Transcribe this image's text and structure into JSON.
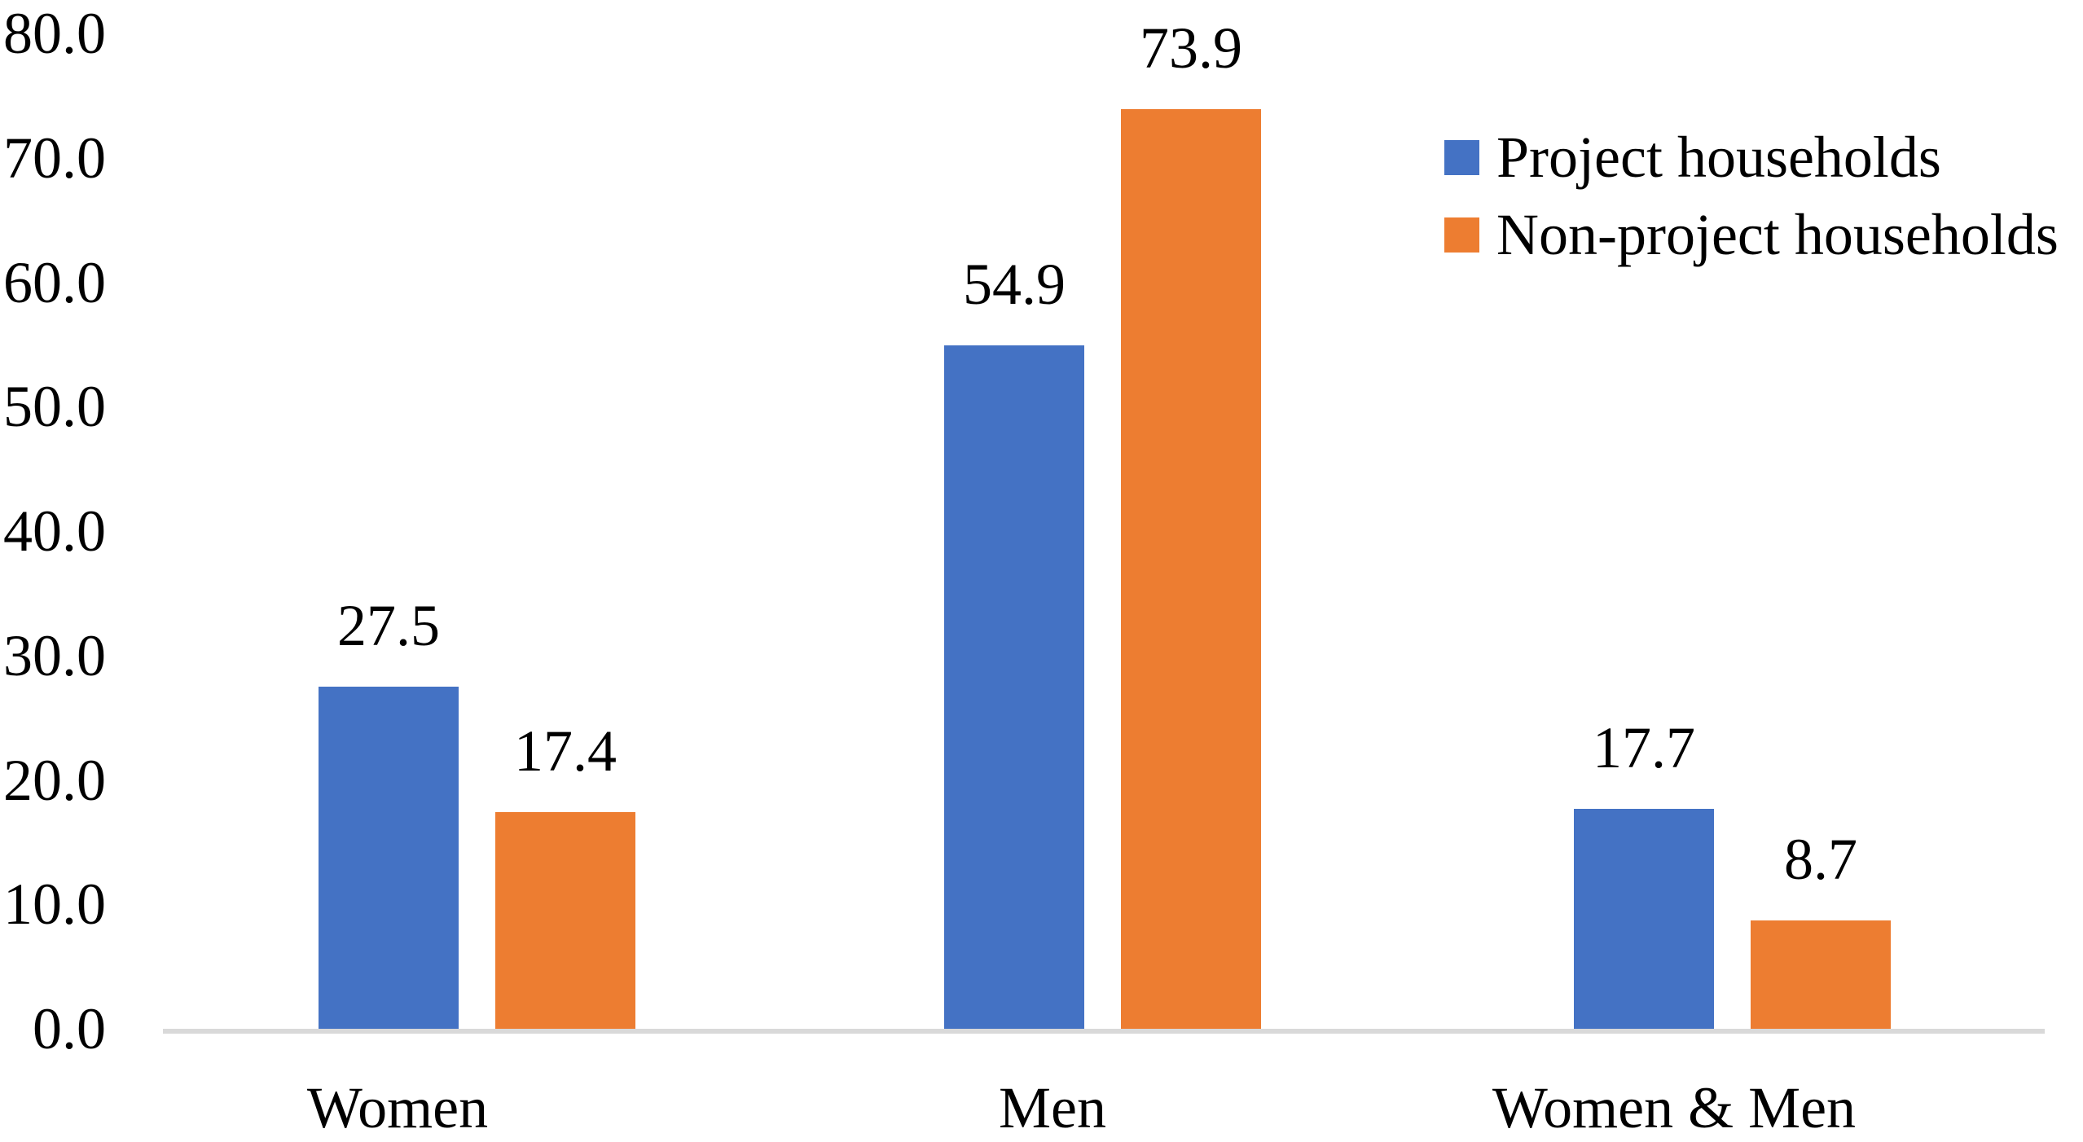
{
  "figure": {
    "background": "#FFFFFF"
  },
  "chart_data": {
    "type": "bar",
    "title": "",
    "categories": [
      "Women",
      "Men",
      "Women & Men"
    ],
    "series": [
      {
        "name": "Project households",
        "color": "#4472C4",
        "values": [
          27.5,
          54.9,
          17.7
        ],
        "value_labels": [
          "27.5",
          "54.9",
          "17.7"
        ]
      },
      {
        "name": "Non-project households",
        "color": "#ED7D31",
        "values": [
          17.4,
          73.9,
          8.7
        ],
        "value_labels": [
          "17.4",
          "73.9",
          "8.7"
        ]
      }
    ],
    "xlabel": "",
    "ylabel": "",
    "ylim": [
      0,
      80
    ],
    "y_tick_step": 10,
    "y_ticks": [
      "80.0",
      "70.0",
      "60.0",
      "50.0",
      "40.0",
      "30.0",
      "20.0",
      "10.0",
      "0.0"
    ],
    "grid": false,
    "legend_position": "top-right",
    "axis_line_color": "#D9D9D9",
    "text_color": "#000000"
  }
}
